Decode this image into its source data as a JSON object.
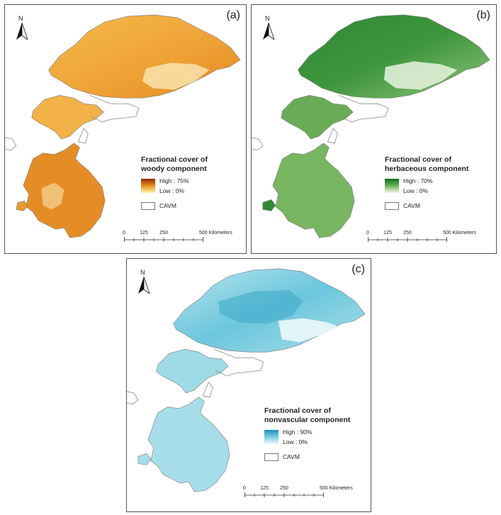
{
  "panels": [
    {
      "label": "(a)",
      "legend_title_1": "Fractional cover of",
      "legend_title_2": "woody component",
      "high": "High : 75%",
      "low": "Low : 0%",
      "cavm": "CAVM",
      "colors": {
        "high": "#8b2a0b",
        "mid": "#e8901c",
        "low": "#fff6b0",
        "fill": "#efa733",
        "fill2": "#e68a1c"
      }
    },
    {
      "label": "(b)",
      "legend_title_1": "Fractional cover of",
      "legend_title_2": "herbaceous component",
      "high": "High : 70%",
      "low": "Low : 0%",
      "cavm": "CAVM",
      "colors": {
        "high": "#0b6e1f",
        "mid": "#6fb15a",
        "low": "#f5f8e6",
        "fill": "#5fa54a",
        "fill2": "#2f8a36"
      }
    },
    {
      "label": "(c)",
      "legend_title_1": "Fractional cover of",
      "legend_title_2": "nonvascular component",
      "high": "High : 90%",
      "low": "Low : 0%",
      "cavm": "CAVM",
      "colors": {
        "high": "#1e8fb8",
        "mid": "#79cbe0",
        "low": "#eef9fb",
        "fill": "#a8dfe9",
        "fill2": "#5bbcd6"
      }
    }
  ],
  "north_label": "N",
  "scale": {
    "ticks": [
      "0",
      "125",
      "250",
      "500 Kilometers"
    ]
  }
}
